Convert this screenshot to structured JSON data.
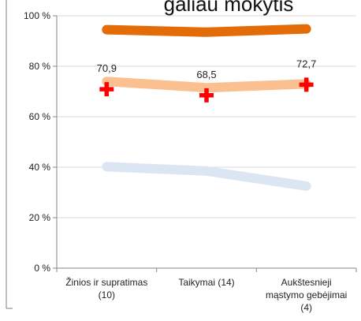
{
  "chart_data": {
    "type": "line",
    "title": "galiau mokytis",
    "categories": [
      [
        "Žinios ir supratimas",
        "(10)"
      ],
      [
        "Taikymai (14)"
      ],
      [
        "Aukštesnieji",
        "mąstymo gebėjimai",
        "(4)"
      ]
    ],
    "ylim": [
      0,
      100
    ],
    "y_ticks": [
      "0 %",
      "20 %",
      "40 %",
      "60 %",
      "80 %",
      "100 %"
    ],
    "grid": true,
    "series": [
      {
        "values": [
          94.5,
          93.5,
          94.8
        ],
        "color": "#e36c09",
        "style": "line"
      },
      {
        "values": [
          74.0,
          71.5,
          73.0
        ],
        "color": "#fac090",
        "style": "line"
      },
      {
        "values": [
          40.2,
          38.5,
          32.5
        ],
        "color": "#dce6f2",
        "style": "line"
      },
      {
        "values": [
          70.9,
          68.5,
          72.7
        ],
        "color": "#ff0000",
        "style": "marker-cross",
        "data_labels": [
          "70,9",
          "68,5",
          "72,7"
        ]
      }
    ]
  }
}
